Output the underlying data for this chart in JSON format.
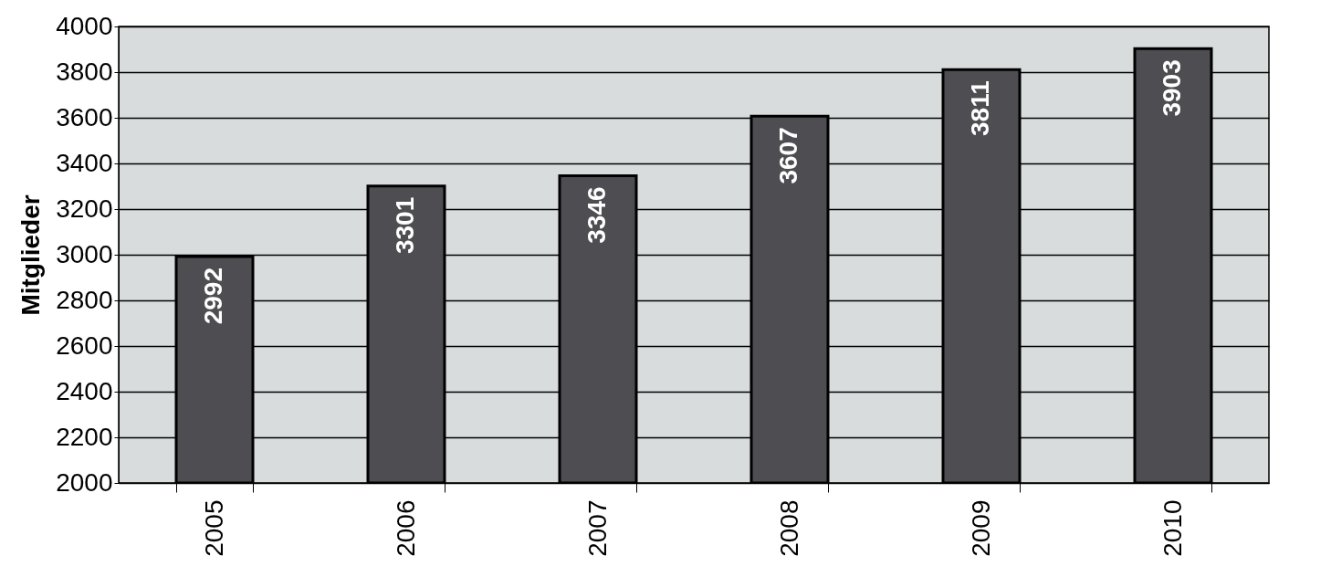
{
  "chart_data": {
    "type": "bar",
    "ylabel": "Mitglieder",
    "categories": [
      "2005",
      "2006",
      "2007",
      "2008",
      "2009",
      "2010"
    ],
    "values": [
      2992,
      3301,
      3346,
      3607,
      3811,
      3903
    ],
    "color": "#4d4d52",
    "ylim": [
      2000,
      4000
    ],
    "yticks": [
      2000,
      2200,
      2400,
      2600,
      2800,
      3000,
      3200,
      3400,
      3600,
      3800,
      4000
    ],
    "grid": "y",
    "data_labels": true
  }
}
